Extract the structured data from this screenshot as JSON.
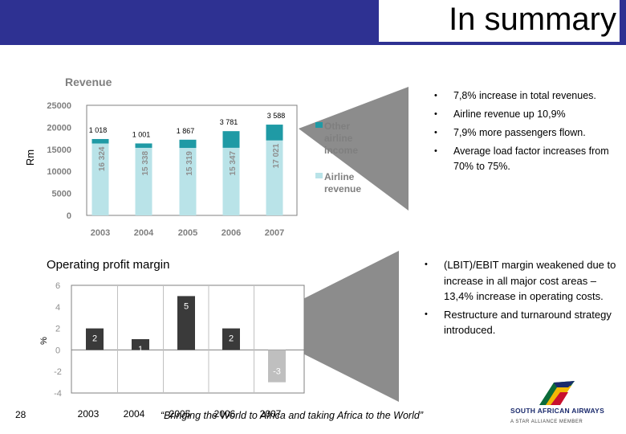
{
  "slide": {
    "title": "In summary",
    "page_number": "28",
    "slogan": "“Bringing the World to Africa and taking Africa to the World”",
    "logo_name": "SOUTH AFRICAN AIRWAYS",
    "logo_tagline": "A STAR ALLIANCE MEMBER"
  },
  "revenue_bullets": [
    "7,8% increase in total revenues.",
    "Airline revenue up 10,9%",
    "7,9% more passengers flown.",
    "Average load factor increases from 70% to 75%."
  ],
  "margin_bullets": [
    "(LBIT)/EBIT margin weakened due to increase in all major cost areas – 13,4% increase in operating costs.",
    "Restructure and turnaround strategy introduced."
  ],
  "colors": {
    "header": "#2e3192",
    "airline_revenue": "#b9e3e8",
    "other_income": "#1f9aa5",
    "margin_bar": "#3a3a3a",
    "negative_bar": "#bfbfbf"
  },
  "chart_data": [
    {
      "type": "bar",
      "stacked": true,
      "title": "Revenue",
      "ylabel": "Rm",
      "categories": [
        "2003",
        "2004",
        "2005",
        "2006",
        "2007"
      ],
      "yticks": [
        "25000",
        "20000",
        "15000",
        "10000",
        "5000",
        "0"
      ],
      "ylim": [
        0,
        25000
      ],
      "series": [
        {
          "name": "Airline revenue",
          "values": [
            16324,
            15338,
            15319,
            15347,
            17021
          ],
          "labels": [
            "16 324",
            "15 338",
            "15 319",
            "15 347",
            "17 021"
          ]
        },
        {
          "name": "Other airline income",
          "values": [
            1018,
            1001,
            1867,
            3781,
            3588
          ],
          "labels": [
            "1 018",
            "1 001",
            "1 867",
            "3 781",
            "3 588"
          ]
        }
      ],
      "legend_position": "right",
      "grid": false
    },
    {
      "type": "bar",
      "title": "Operating profit margin",
      "ylabel": "%",
      "categories": [
        "2003",
        "2004",
        "2005",
        "2006",
        "2007"
      ],
      "yticks": [
        "6",
        "4",
        "2",
        "0",
        "-2",
        "-4"
      ],
      "ylim": [
        -4,
        6
      ],
      "values": [
        2,
        1,
        5,
        2,
        -3
      ],
      "labels": [
        "2",
        "1",
        "5",
        "2",
        "-3"
      ],
      "grid": false
    }
  ]
}
